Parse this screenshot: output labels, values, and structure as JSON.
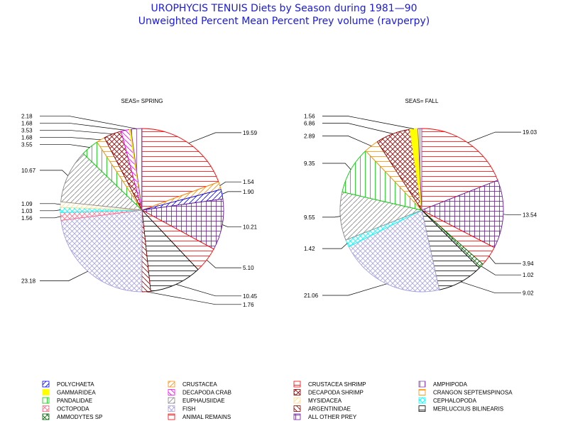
{
  "title": "UROPHYCIS TENUIS Diets by Season during 1981—90",
  "subtitle": "Unweighted Percent Mean Percent Prey  volume (ravperpy)",
  "categories": [
    {
      "name": "POLYCHAETA",
      "color": "#0000ff",
      "pattern": "diag-l"
    },
    {
      "name": "CRUSTACEA",
      "color": "#ff8c00",
      "pattern": "diag-l"
    },
    {
      "name": "CRUSTACEA SHRIMP",
      "color": "#ff0000",
      "pattern": "horiz"
    },
    {
      "name": "AMPHIPODA",
      "color": "#8e3fa8",
      "pattern": "vert"
    },
    {
      "name": "GAMMARIDEA",
      "color": "#ffff00",
      "pattern": "solid"
    },
    {
      "name": "DECAPODA CRAB",
      "color": "#ff00ff",
      "pattern": "diag-r"
    },
    {
      "name": "DECAPODA SHRIMP",
      "color": "#8b0000",
      "pattern": "cross-d"
    },
    {
      "name": "CRANGON SEPTEMSPINOSA",
      "color": "#ff8c00",
      "pattern": "horiz"
    },
    {
      "name": "PANDALIDAE",
      "color": "#00cc00",
      "pattern": "vert"
    },
    {
      "name": "MYSIDACEA",
      "color": "#ffdd88",
      "pattern": "diag-l"
    },
    {
      "name": "CEPHALOPODA",
      "color": "#00ffff",
      "pattern": "cross-d"
    },
    {
      "name": "OCTOPODA",
      "color": "#ff6b8a",
      "pattern": "cross-d"
    },
    {
      "name": "EUPHAUSIIDAE",
      "color": "#888888",
      "pattern": "diag-l"
    },
    {
      "name": "FISH",
      "color": "#a7a4e0",
      "pattern": "cross-d"
    },
    {
      "name": "ARGENTINIDAE",
      "color": "#8b0000",
      "pattern": "diag-r"
    },
    {
      "name": "MERLUCCIUS BILINEARIS",
      "color": "#000000",
      "pattern": "horiz"
    },
    {
      "name": "AMMODYTES SP",
      "color": "#006400",
      "pattern": "cross-d"
    },
    {
      "name": "ANIMAL REMAINS",
      "color": "#ff0000",
      "pattern": "horiz"
    },
    {
      "name": "ALL OTHER PREY",
      "color": "#6a1b9a",
      "pattern": "cross"
    }
  ],
  "legend_rows": [
    [
      "POLYCHAETA",
      "CRUSTACEA",
      "CRUSTACEA SHRIMP",
      "AMPHIPODA"
    ],
    [
      "GAMMARIDEA",
      "DECAPODA CRAB",
      "DECAPODA SHRIMP",
      "CRANGON SEPTEMSPINOSA"
    ],
    [
      "PANDALIDAE",
      "EUPHAUSIIDAE",
      "MYSIDACEA",
      "CEPHALOPODA"
    ],
    [
      "OCTOPODA",
      "FISH",
      "ARGENTINIDAE",
      "MERLUCCIUS BILINEARIS"
    ],
    [
      "AMMODYTES SP",
      "ANIMAL REMAINS",
      "ALL OTHER PREY"
    ]
  ],
  "chart_data": [
    {
      "type": "pie",
      "title": "SEAS= SPRING",
      "slices": [
        {
          "category": "CRUSTACEA SHRIMP",
          "value": 19.59,
          "label": "19.59"
        },
        {
          "category": "CRUSTACEA",
          "value": 1.54,
          "label": "1.54"
        },
        {
          "category": "POLYCHAETA",
          "value": 1.9,
          "label": "1.90"
        },
        {
          "category": "ALL OTHER PREY",
          "value": 10.21,
          "label": "10.21"
        },
        {
          "category": "ANIMAL REMAINS",
          "value": 5.1,
          "label": "5.10"
        },
        {
          "category": "MERLUCCIUS BILINEARIS",
          "value": 10.45,
          "label": "10.45"
        },
        {
          "category": "ARGENTINIDAE",
          "value": 1.76,
          "label": "1.76"
        },
        {
          "category": "FISH",
          "value": 23.18,
          "label": "23.18"
        },
        {
          "category": "OCTOPODA",
          "value": 1.56,
          "label": "1.56"
        },
        {
          "category": "CEPHALOPODA",
          "value": 1.03,
          "label": "1.03"
        },
        {
          "category": "MYSIDACEA",
          "value": 1.09,
          "label": "1.09"
        },
        {
          "category": "EUPHAUSIIDAE",
          "value": 10.67,
          "label": "10.67"
        },
        {
          "category": "PANDALIDAE",
          "value": 3.55,
          "label": "3.55"
        },
        {
          "category": "CRANGON SEPTEMSPINOSA",
          "value": 1.68,
          "label": "1.68"
        },
        {
          "category": "DECAPODA SHRIMP",
          "value": 3.53,
          "label": "3.53"
        },
        {
          "category": "DECAPODA CRAB",
          "value": 1.68,
          "label": "1.68"
        },
        {
          "category": "GAMMARIDEA",
          "value": 0.3,
          "label": ""
        },
        {
          "category": "AMPHIPODA",
          "value": 2.18,
          "label": "2.18"
        }
      ]
    },
    {
      "type": "pie",
      "title": "SEAS= FALL",
      "slices": [
        {
          "category": "CRUSTACEA SHRIMP",
          "value": 19.03,
          "label": "19.03"
        },
        {
          "category": "ALL OTHER PREY",
          "value": 13.54,
          "label": "13.54"
        },
        {
          "category": "ANIMAL REMAINS",
          "value": 3.94,
          "label": "3.94"
        },
        {
          "category": "AMMODYTES SP",
          "value": 1.02,
          "label": "1.02"
        },
        {
          "category": "MERLUCCIUS BILINEARIS",
          "value": 9.02,
          "label": "9.02"
        },
        {
          "category": "FISH",
          "value": 21.06,
          "label": "21.06"
        },
        {
          "category": "CEPHALOPODA",
          "value": 1.42,
          "label": "1.42"
        },
        {
          "category": "EUPHAUSIIDAE",
          "value": 9.55,
          "label": "9.55"
        },
        {
          "category": "PANDALIDAE",
          "value": 9.35,
          "label": "9.35"
        },
        {
          "category": "CRANGON SEPTEMSPINOSA",
          "value": 2.89,
          "label": "2.89"
        },
        {
          "category": "DECAPODA SHRIMP",
          "value": 6.86,
          "label": "6.86"
        },
        {
          "category": "GAMMARIDEA",
          "value": 1.56,
          "label": "1.56"
        },
        {
          "category": "AMPHIPODA",
          "value": 0.75,
          "label": ""
        }
      ]
    }
  ]
}
